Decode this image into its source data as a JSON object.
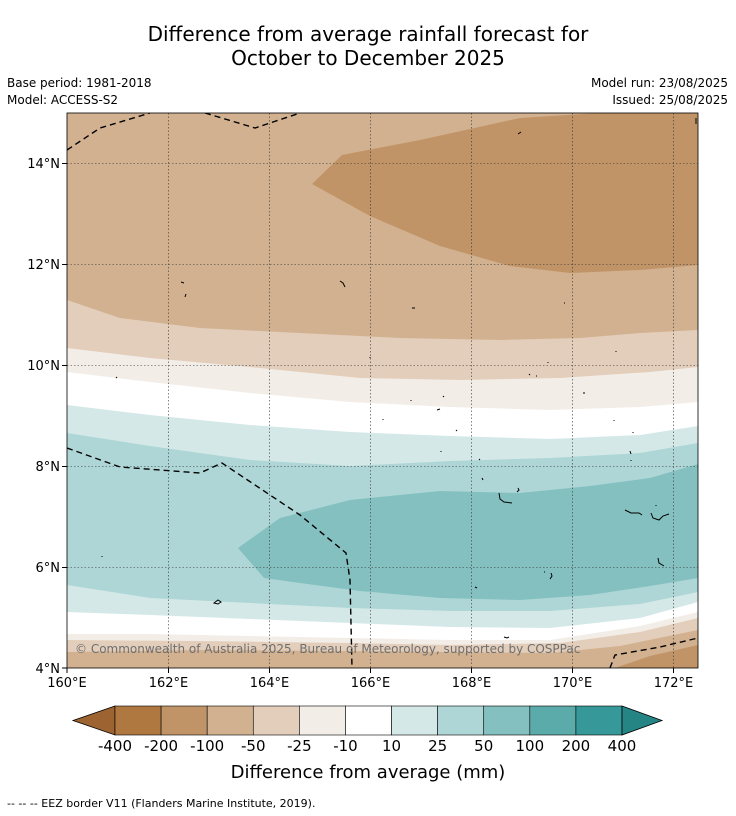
{
  "title_line1": "Difference from average rainfall forecast for",
  "title_line2": "October to December 2025",
  "base_period": "Base period: 1981-2018",
  "model": "Model: ACCESS-S2",
  "model_run": "Model run: 23/08/2025",
  "issued": "Issued: 25/08/2025",
  "copyright": "© Commonwealth of Australia 2025, Bureau of Meteorology, supported by COSPPac",
  "lon_ticks": [
    "160°E",
    "162°E",
    "164°E",
    "166°E",
    "168°E",
    "170°E",
    "172°E"
  ],
  "lat_ticks": [
    "14°N",
    "12°N",
    "10°N",
    "8°N",
    "6°N",
    "4°N"
  ],
  "colorbar": {
    "title": "Difference from average (mm)",
    "tick_labels": [
      "-400",
      "-200",
      "-100",
      "-50",
      "-25",
      "-10",
      "10",
      "25",
      "50",
      "100",
      "200",
      "400"
    ],
    "colors": [
      "#9d6330",
      "#b07841",
      "#c09467",
      "#d2b190",
      "#e3cebb",
      "#f3ede8",
      "#ffffff",
      "#d5e8e8",
      "#aed6d6",
      "#84c0c0",
      "#5babab",
      "#369898",
      "#258585"
    ]
  },
  "footnote": "--  --  -- EEZ border V11 (Flanders Marine Institute, 2019).",
  "map": {
    "lon_range": [
      160,
      172.5
    ],
    "lat_range": [
      4,
      15
    ],
    "bands": [
      {
        "level": "-100 to -200",
        "color": "#c09467"
      },
      {
        "level": "-50 to -100",
        "color": "#d2b190"
      },
      {
        "level": "-25 to -50",
        "color": "#e3cebb"
      },
      {
        "level": "-10 to -25",
        "color": "#f3ede8"
      },
      {
        "level": "-10 to 10",
        "color": "#ffffff"
      },
      {
        "level": "10 to 25",
        "color": "#d5e8e8"
      },
      {
        "level": "25 to 50",
        "color": "#aed6d6"
      },
      {
        "level": "50 to 100",
        "color": "#84c0c0"
      }
    ]
  }
}
